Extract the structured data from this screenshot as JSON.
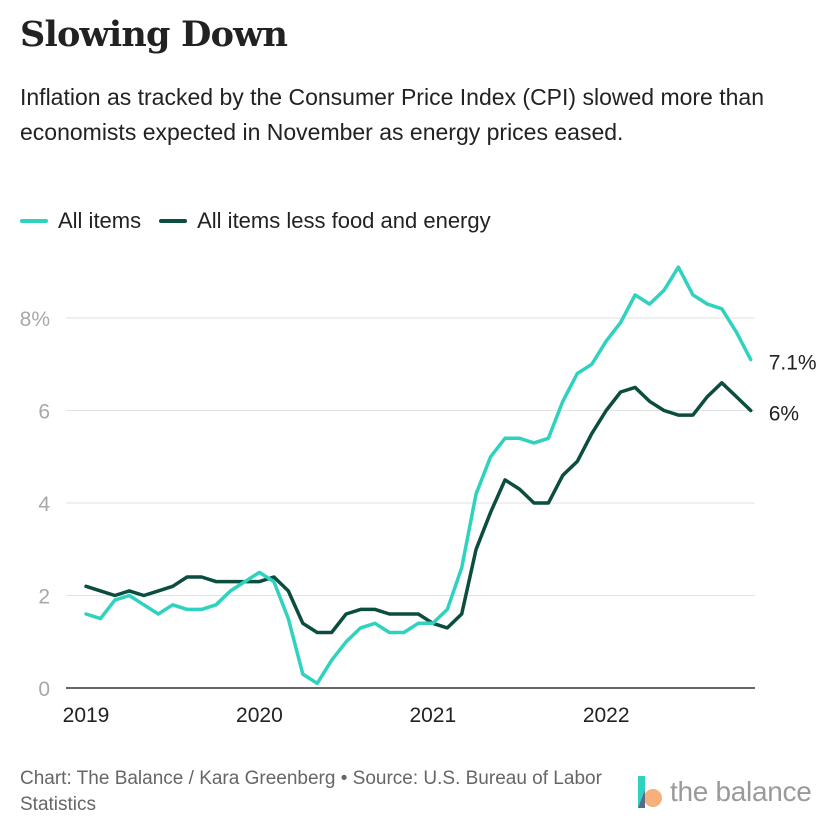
{
  "header": {
    "title": "Slowing Down",
    "subtitle": "Inflation as tracked by the Consumer Price Index (CPI) slowed more than economists expected in November as energy prices eased."
  },
  "legend": [
    {
      "label": "All items",
      "color": "#2fd2be"
    },
    {
      "label": "All items less food and energy",
      "color": "#0b4d3e"
    }
  ],
  "footer": {
    "credit": "Chart: The Balance / Kara Greenberg • Source: U.S. Bureau of Labor Statistics",
    "logo_text": "the balance"
  },
  "chart_data": {
    "type": "line",
    "x_tick_labels": [
      "2019",
      "2020",
      "2021",
      "2022"
    ],
    "y_tick_labels": [
      "0",
      "2",
      "4",
      "6",
      "8%"
    ],
    "y_ticks": [
      0,
      2,
      4,
      6,
      8
    ],
    "ylim": [
      0,
      9.5
    ],
    "xlim": [
      "2019-01",
      "2022-11"
    ],
    "grid": true,
    "legend_position": "top-left",
    "x": [
      "2019-01",
      "2019-02",
      "2019-03",
      "2019-04",
      "2019-05",
      "2019-06",
      "2019-07",
      "2019-08",
      "2019-09",
      "2019-10",
      "2019-11",
      "2019-12",
      "2020-01",
      "2020-02",
      "2020-03",
      "2020-04",
      "2020-05",
      "2020-06",
      "2020-07",
      "2020-08",
      "2020-09",
      "2020-10",
      "2020-11",
      "2020-12",
      "2021-01",
      "2021-02",
      "2021-03",
      "2021-04",
      "2021-05",
      "2021-06",
      "2021-07",
      "2021-08",
      "2021-09",
      "2021-10",
      "2021-11",
      "2021-12",
      "2022-01",
      "2022-02",
      "2022-03",
      "2022-04",
      "2022-05",
      "2022-06",
      "2022-07",
      "2022-08",
      "2022-09",
      "2022-10",
      "2022-11"
    ],
    "series": [
      {
        "name": "All items",
        "color": "#2fd2be",
        "end_label": "7.1%",
        "values": [
          1.6,
          1.5,
          1.9,
          2.0,
          1.8,
          1.6,
          1.8,
          1.7,
          1.7,
          1.8,
          2.1,
          2.3,
          2.5,
          2.3,
          1.5,
          0.3,
          0.1,
          0.6,
          1.0,
          1.3,
          1.4,
          1.2,
          1.2,
          1.4,
          1.4,
          1.7,
          2.6,
          4.2,
          5.0,
          5.4,
          5.4,
          5.3,
          5.4,
          6.2,
          6.8,
          7.0,
          7.5,
          7.9,
          8.5,
          8.3,
          8.6,
          9.1,
          8.5,
          8.3,
          8.2,
          7.7,
          7.1
        ]
      },
      {
        "name": "All items less food and energy",
        "color": "#0b4d3e",
        "end_label": "6%",
        "values": [
          2.2,
          2.1,
          2.0,
          2.1,
          2.0,
          2.1,
          2.2,
          2.4,
          2.4,
          2.3,
          2.3,
          2.3,
          2.3,
          2.4,
          2.1,
          1.4,
          1.2,
          1.2,
          1.6,
          1.7,
          1.7,
          1.6,
          1.6,
          1.6,
          1.4,
          1.3,
          1.6,
          3.0,
          3.8,
          4.5,
          4.3,
          4.0,
          4.0,
          4.6,
          4.9,
          5.5,
          6.0,
          6.4,
          6.5,
          6.2,
          6.0,
          5.9,
          5.9,
          6.3,
          6.6,
          6.3,
          6.0
        ]
      }
    ]
  }
}
